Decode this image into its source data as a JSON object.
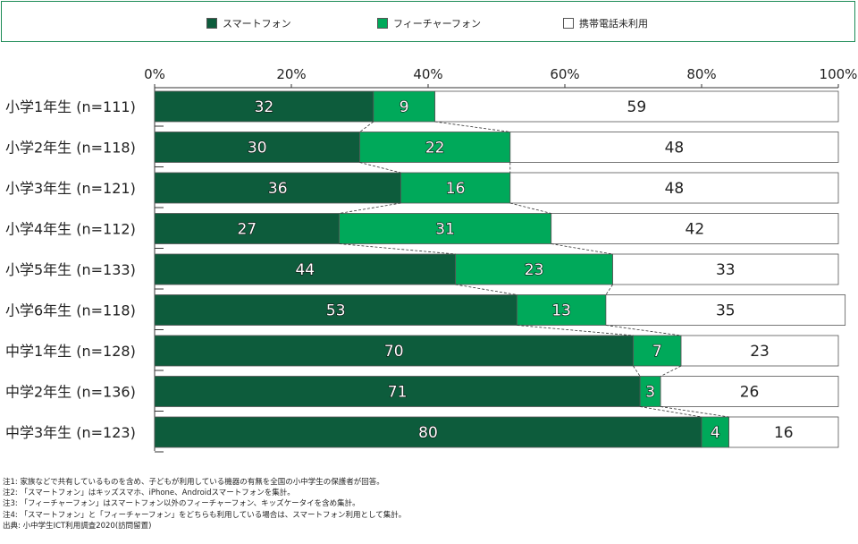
{
  "legend": {
    "items": [
      {
        "label": "スマートフォン",
        "color": "#0d5c3c"
      },
      {
        "label": "フィーチャーフォン",
        "color": "#00a95a"
      },
      {
        "label": "携帯電話未利用",
        "color": "#ffffff"
      }
    ]
  },
  "chart_data": {
    "type": "bar",
    "orientation": "horizontal",
    "stacked": true,
    "percent_axis": true,
    "categories": [
      "小学1年生 (n=111)",
      "小学2年生 (n=118)",
      "小学3年生 (n=121)",
      "小学4年生 (n=112)",
      "小学5年生 (n=133)",
      "小学6年生 (n=118)",
      "中学1年生 (n=128)",
      "中学2年生 (n=136)",
      "中学3年生 (n=123)"
    ],
    "series": [
      {
        "name": "スマートフォン",
        "color": "#0d5c3c",
        "values": [
          32,
          30,
          36,
          27,
          44,
          53,
          70,
          71,
          80
        ]
      },
      {
        "name": "フィーチャーフォン",
        "color": "#00a95a",
        "values": [
          9,
          22,
          16,
          31,
          23,
          13,
          7,
          3,
          4
        ]
      },
      {
        "name": "携帯電話未利用",
        "color": "#ffffff",
        "values": [
          59,
          48,
          48,
          42,
          33,
          35,
          23,
          26,
          16
        ]
      }
    ],
    "xticks": [
      "0%",
      "20%",
      "40%",
      "60%",
      "80%",
      "100%"
    ],
    "xlim": [
      0,
      100
    ],
    "legend_position": "top",
    "connector_lines": "dashed"
  },
  "notes": [
    "注1: 家族などで共有しているものを含め、子どもが利用している機器の有無を全国の小中学生の保護者が回答。",
    "注2: 「スマートフォン」はキッズスマホ、iPhone、Androidスマートフォンを集計。",
    "注3: 「フィーチャーフォン」はスマートフォン以外のフィーチャーフォン、キッズケータイを含め集計。",
    "注4: 「スマートフォン」と「フィーチャーフォン」をどちらも利用している場合は、スマートフォン利用として集計。",
    "出典: 小中学生ICT利用調査2020(訪問留置)"
  ]
}
